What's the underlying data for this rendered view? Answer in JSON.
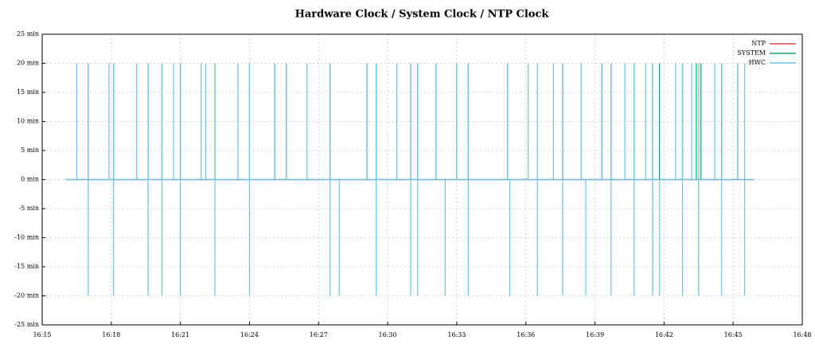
{
  "chart_data": {
    "type": "line",
    "title": "Hardware Clock / System Clock / NTP Clock",
    "xlim": [
      975,
      1008
    ],
    "xticks": [
      {
        "value": 975,
        "label": "16:15"
      },
      {
        "value": 978,
        "label": "16:18"
      },
      {
        "value": 981,
        "label": "16:21"
      },
      {
        "value": 984,
        "label": "16:24"
      },
      {
        "value": 987,
        "label": "16:27"
      },
      {
        "value": 990,
        "label": "16:30"
      },
      {
        "value": 993,
        "label": "16:33"
      },
      {
        "value": 996,
        "label": "16:36"
      },
      {
        "value": 999,
        "label": "16:39"
      },
      {
        "value": 1002,
        "label": "16:42"
      },
      {
        "value": 1005,
        "label": "16:45"
      },
      {
        "value": 1008,
        "label": "16:48"
      }
    ],
    "ylim": [
      -25,
      25
    ],
    "yticks": [
      {
        "value": -25,
        "label": "-25 min"
      },
      {
        "value": -20,
        "label": "-20 min"
      },
      {
        "value": -15,
        "label": "-15 min"
      },
      {
        "value": -10,
        "label": "-10 min"
      },
      {
        "value": -5,
        "label": "-5 min"
      },
      {
        "value": 0,
        "label": "0 min"
      },
      {
        "value": 5,
        "label": "5 min"
      },
      {
        "value": 10,
        "label": "10 min"
      },
      {
        "value": 15,
        "label": "15 min"
      },
      {
        "value": 20,
        "label": "20 min"
      },
      {
        "value": 25,
        "label": "25 min"
      }
    ],
    "grid": true,
    "legend": "upper right",
    "series": [
      {
        "name": "NTP",
        "color": "#e8474a",
        "x": [
          976,
          1005.9
        ],
        "values": [
          0,
          0
        ]
      },
      {
        "name": "SYSTEM",
        "color": "#1a9e77",
        "x": [
          976,
          977,
          977,
          977,
          978.1,
          978.1,
          978.1,
          979.6,
          979.6,
          979.6,
          980.2,
          980.2,
          980.2,
          981,
          981,
          981,
          982.5,
          982.5,
          982.5,
          984,
          984,
          984,
          985.1,
          985.1,
          985.1,
          985.6,
          985.6,
          985.6,
          987.5,
          987.5,
          987.5,
          989.1,
          989.1,
          989.1,
          989.5,
          989.5,
          989.5,
          991,
          991,
          991,
          991.3,
          991.3,
          991.3,
          992.1,
          992.1,
          992.1,
          993,
          993,
          993,
          993.5,
          993.5,
          993.5,
          995.2,
          995.2,
          995.2,
          997.6,
          997.6,
          997.6,
          999.3,
          999.3,
          999.3,
          999.7,
          999.7,
          999.7,
          1000.7,
          1000.7,
          1000.7,
          1001.5,
          1001.5,
          1001.5,
          1001.8,
          1001.8,
          1001.8,
          1002.8,
          1002.8,
          1002.8,
          1003.4,
          1003.4,
          1003.4,
          1003.6,
          1003.6,
          1003.6,
          1004.5,
          1004.5,
          1004.5,
          1005.2,
          1005.2,
          1005.2,
          1005.9
        ],
        "values": [
          0,
          0,
          20,
          0,
          0,
          20,
          0,
          0,
          20,
          0,
          0,
          20,
          0,
          0,
          20,
          0,
          0,
          20,
          0,
          0,
          20,
          0,
          0,
          20,
          0,
          0,
          20,
          0,
          0,
          20,
          0,
          0,
          20,
          0,
          0,
          20,
          0,
          0,
          20,
          0,
          0,
          20,
          0,
          0,
          20,
          0,
          0,
          20,
          0,
          0,
          20,
          0,
          0,
          20,
          0,
          0,
          20,
          0,
          0,
          20,
          0,
          0,
          20,
          0,
          0,
          20,
          0,
          0,
          20,
          0,
          0,
          20,
          0,
          0,
          20,
          0,
          0,
          20,
          0,
          0,
          20,
          0,
          0,
          20,
          0,
          0,
          20,
          0,
          0
        ]
      },
      {
        "name": "HWC",
        "color": "#6cc3e8",
        "x": [
          976,
          976.5,
          976.5,
          976.5,
          977,
          977,
          977,
          977,
          977.9,
          977.9,
          977.9,
          978.1,
          978.1,
          978.1,
          978.1,
          979.1,
          979.1,
          979.1,
          979.6,
          979.6,
          979.6,
          979.6,
          980.2,
          980.2,
          980.2,
          980.2,
          980.7,
          980.7,
          980.7,
          981,
          981,
          981,
          981,
          981.9,
          981.9,
          981.9,
          982.1,
          982.1,
          982.1,
          982.5,
          982.5,
          982.5,
          982.5,
          983.5,
          983.5,
          983.5,
          984,
          984,
          984,
          984,
          985.1,
          985.1,
          985.1,
          985.6,
          985.6,
          985.6,
          986.5,
          986.5,
          986.5,
          987.5,
          987.5,
          987.5,
          987.5,
          987.9,
          987.9,
          987.9,
          989.1,
          989.1,
          989.1,
          989.5,
          989.5,
          989.5,
          989.5,
          990.4,
          990.4,
          990.4,
          991,
          991,
          991,
          991,
          991.3,
          991.3,
          991.3,
          991.3,
          992.1,
          992.1,
          992.1,
          992.5,
          992.5,
          992.5,
          993,
          993,
          993,
          993.5,
          993.5,
          993.5,
          993.5,
          995.2,
          995.2,
          995.2,
          995.3,
          995.3,
          995.3,
          996.1,
          996.1,
          996.1,
          996.5,
          996.5,
          996.5,
          996.5,
          997.2,
          997.2,
          997.2,
          997.6,
          997.6,
          997.6,
          997.6,
          998.4,
          998.4,
          998.4,
          998.6,
          998.6,
          998.6,
          999.3,
          999.3,
          999.3,
          999.7,
          999.7,
          999.7,
          999.7,
          1000.3,
          1000.3,
          1000.3,
          1000.7,
          1000.7,
          1000.7,
          1000.7,
          1001.2,
          1001.2,
          1001.2,
          1001.5,
          1001.5,
          1001.5,
          1001.5,
          1001.8,
          1001.8,
          1001.8,
          1002.5,
          1002.5,
          1002.5,
          1002.8,
          1002.8,
          1002.8,
          1002.8,
          1003.2,
          1003.2,
          1003.2,
          1003.5,
          1003.5,
          1003.5,
          1003.5,
          1004.2,
          1004.2,
          1004.2,
          1004.5,
          1004.5,
          1004.5,
          1004.5,
          1005.2,
          1005.2,
          1005.2,
          1005.5,
          1005.5,
          1005.5,
          1005.5,
          1005.9
        ],
        "values": [
          0,
          0,
          20,
          0,
          0,
          20,
          -20,
          0,
          0,
          20,
          0,
          0,
          20,
          -20,
          0,
          0,
          20,
          0,
          0,
          20,
          -20,
          0,
          0,
          20,
          -20,
          0,
          0,
          20,
          0,
          0,
          20,
          -20,
          0,
          0,
          20,
          0,
          0,
          20,
          0,
          0,
          20,
          -20,
          0,
          0,
          20,
          0,
          0,
          20,
          -20,
          0,
          0,
          20,
          0,
          0,
          20,
          0,
          0,
          20,
          0,
          0,
          20,
          -20,
          0,
          0,
          -20,
          0,
          0,
          20,
          0,
          0,
          20,
          -20,
          0,
          0,
          20,
          0,
          0,
          20,
          -20,
          0,
          0,
          20,
          -20,
          0,
          0,
          20,
          0,
          0,
          -20,
          0,
          0,
          20,
          0,
          0,
          20,
          -20,
          0,
          0,
          20,
          0,
          0,
          -20,
          0,
          0,
          20,
          0,
          0,
          20,
          -20,
          0,
          0,
          20,
          0,
          0,
          20,
          -20,
          0,
          0,
          20,
          0,
          0,
          -20,
          0,
          0,
          20,
          0,
          0,
          20,
          -20,
          0,
          0,
          20,
          0,
          0,
          20,
          -20,
          0,
          0,
          20,
          0,
          0,
          20,
          -20,
          0,
          0,
          -20,
          0,
          0,
          20,
          0,
          0,
          20,
          -20,
          0,
          0,
          20,
          0,
          0,
          20,
          -20,
          0,
          0,
          20,
          0,
          0,
          20,
          -20,
          0,
          0,
          20,
          0,
          0,
          20,
          -20,
          0,
          0
        ]
      }
    ]
  }
}
